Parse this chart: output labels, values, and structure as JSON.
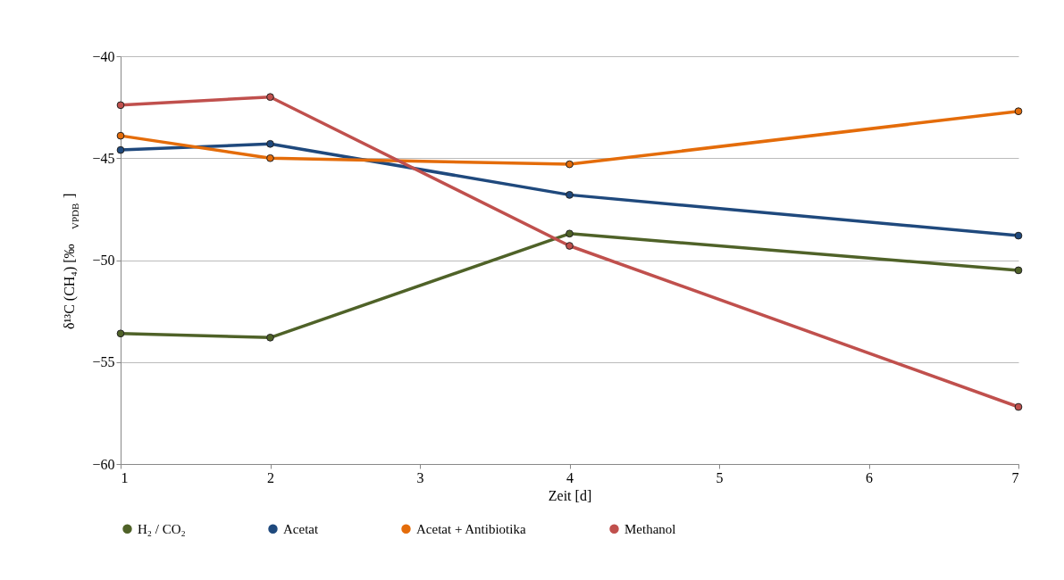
{
  "chart_data": {
    "type": "line",
    "xlabel": "Zeit [d]",
    "ylabel": "δ¹³C (CH₄)  [‰$_{VPDB}$]",
    "x": [
      1,
      2,
      4,
      7
    ],
    "xlim": [
      1,
      7
    ],
    "xticks": [
      1,
      2,
      3,
      4,
      5,
      6,
      7
    ],
    "ylim": [
      -60,
      -40
    ],
    "yticks": [
      -60,
      -55,
      -50,
      -45,
      -40
    ],
    "grid": "y",
    "legend": "bottom",
    "marker": "circle",
    "line_style": "solid",
    "series": [
      {
        "name": "H₂ / CO₂",
        "color": "#4f6228",
        "values": [
          -53.6,
          -53.8,
          -48.7,
          -50.5
        ]
      },
      {
        "name": "Acetat",
        "color": "#1f497d",
        "values": [
          -44.6,
          -44.3,
          -46.8,
          -48.8
        ]
      },
      {
        "name": "Acetat + Antibiotika",
        "color": "#e46c0a",
        "values": [
          -43.9,
          -45.0,
          -45.3,
          -42.7
        ]
      },
      {
        "name": "Methanol",
        "color": "#c0504d",
        "values": [
          -42.4,
          -42.0,
          -49.3,
          -57.2
        ]
      }
    ]
  }
}
